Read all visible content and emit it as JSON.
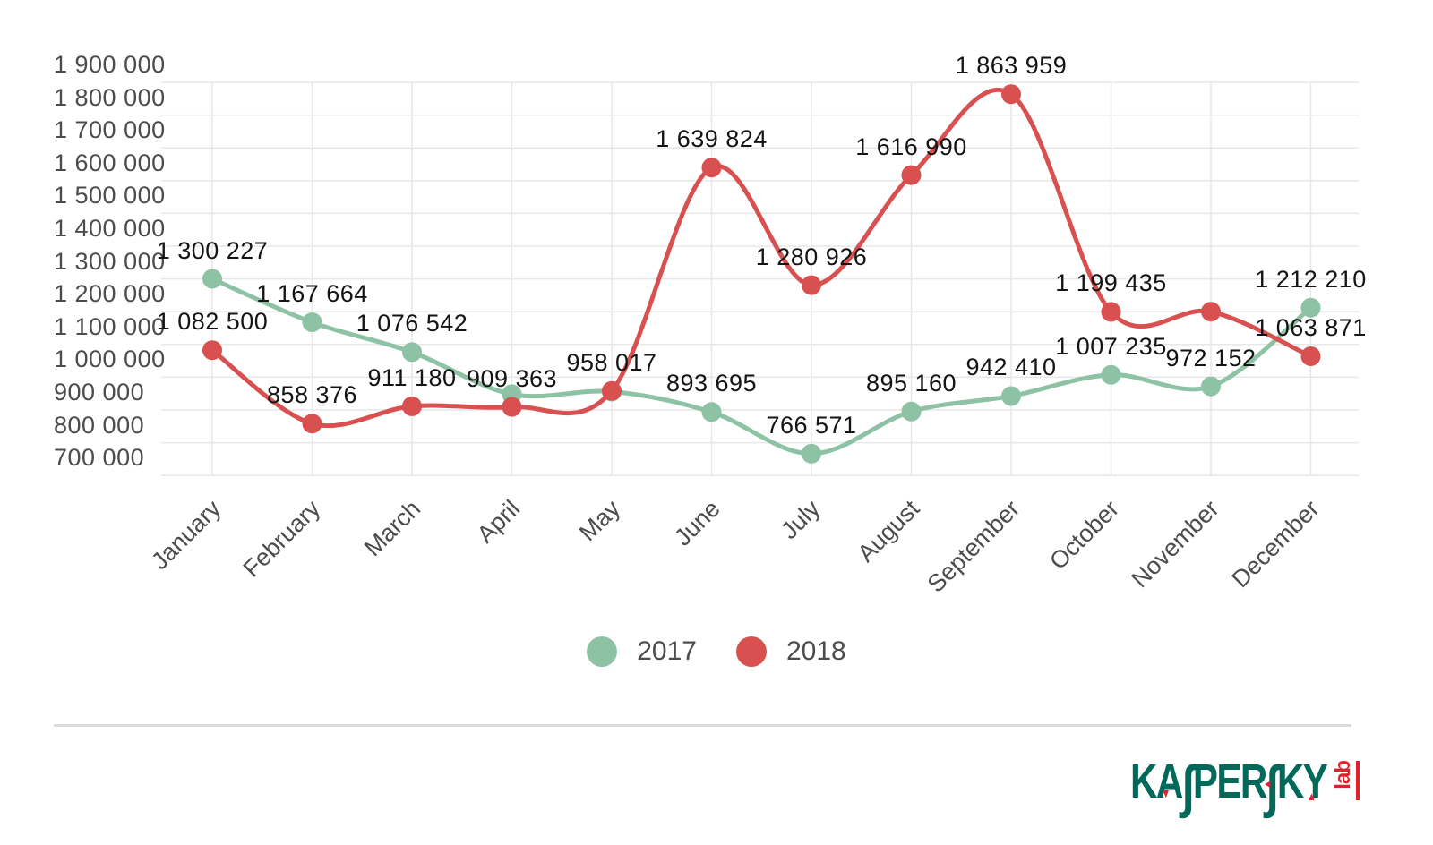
{
  "chart_data": {
    "type": "line",
    "line_style": "smooth",
    "grid": true,
    "legend_position": "bottom-center",
    "x_categories": [
      "January",
      "February",
      "March",
      "April",
      "May",
      "June",
      "July",
      "August",
      "September",
      "October",
      "November",
      "December"
    ],
    "ylim": [
      700000,
      1900000
    ],
    "ytick_step": 100000,
    "ytick_labels": [
      "1 900 000",
      "1 800 000",
      "1 700 000",
      "1 600 000",
      "1 500 000",
      "1 400 000",
      "1 300 000",
      "1 200 000",
      "1 100 000",
      "1 000 000",
      "900 000",
      "800 000",
      "700 000"
    ],
    "series": [
      {
        "name": "2017",
        "color": "#8dc3a4",
        "values": [
          1300227,
          1167664,
          1076542,
          948000,
          956000,
          893695,
          766571,
          895160,
          942410,
          1007235,
          972152,
          1212210
        ],
        "point_labels": [
          "1 300 227",
          "1 167 664",
          "1 076 542",
          "",
          "",
          "893 695",
          "766 571",
          "895 160",
          "942 410",
          "1 007 235",
          "972 152",
          "1 212 210"
        ]
      },
      {
        "name": "2018",
        "color": "#d8504f",
        "values": [
          1082500,
          858376,
          911180,
          909363,
          958017,
          1639824,
          1280926,
          1616990,
          1863959,
          1199435,
          1200000,
          1063871
        ],
        "point_labels": [
          "1 082 500",
          "858 376",
          "911 180",
          "909 363",
          "958 017",
          "1 639 824",
          "1 280 926",
          "1 616 990",
          "1 863 959",
          "1 199 435",
          "",
          "1 063 871"
        ]
      }
    ]
  },
  "legend": {
    "items": [
      {
        "label": "2017",
        "color": "#8dc3a4"
      },
      {
        "label": "2018",
        "color": "#d8504f"
      }
    ]
  },
  "footer": {
    "logo": {
      "text": "KASPERSKY",
      "sub": "lab",
      "parts": {
        "p1": "KA",
        "s1": "∫",
        "p2": "PER",
        "s2": "∫",
        "p3": "KY"
      },
      "brand_green": "#00695a",
      "brand_red": "#e31e2d"
    }
  },
  "icons": {
    "triangle_down": "▼",
    "triangle_left": "◄",
    "triangle_up": "▲"
  }
}
